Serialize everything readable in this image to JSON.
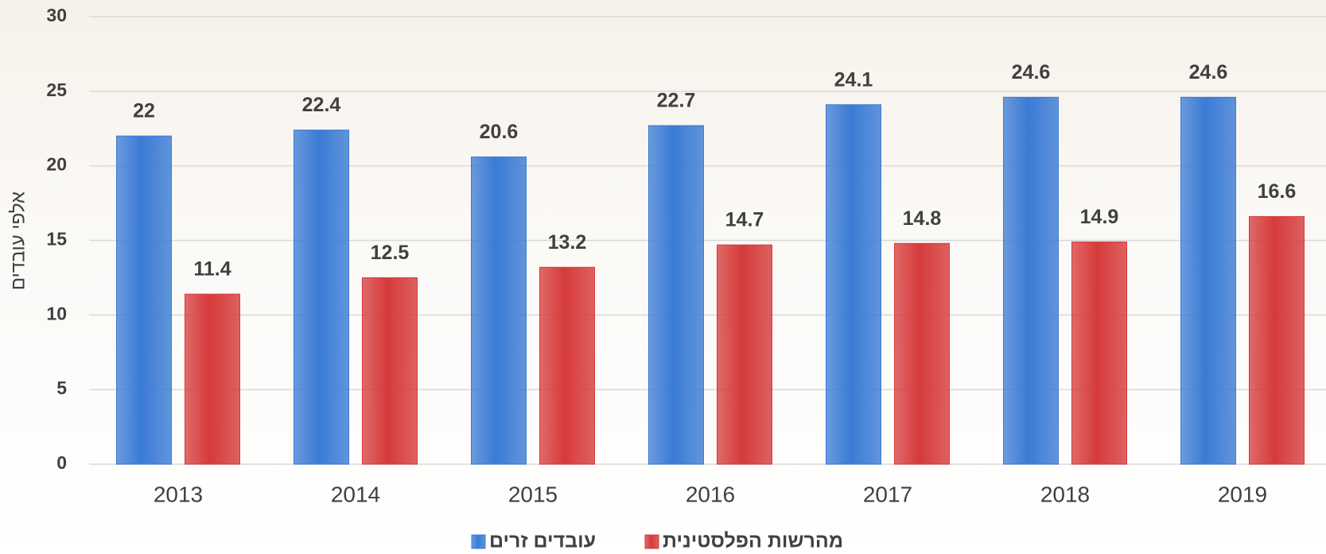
{
  "chart_data": {
    "type": "bar",
    "y_label": "אלפי עובדים",
    "categories": [
      "2013",
      "2014",
      "2015",
      "2016",
      "2017",
      "2018",
      "2019"
    ],
    "series": [
      {
        "name": "עובדים זרים",
        "color": "#3a7bd5",
        "values": [
          22,
          22.4,
          20.6,
          22.7,
          24.1,
          24.6,
          24.6
        ]
      },
      {
        "name": "מהרשות הפלסטינית",
        "color": "#d63a3a",
        "values": [
          11.4,
          12.5,
          13.2,
          14.7,
          14.8,
          14.9,
          16.6
        ]
      }
    ],
    "ylim": [
      0,
      30
    ],
    "yticks": [
      0,
      5,
      10,
      15,
      20,
      25,
      30
    ],
    "grid": true,
    "legend": "bottom"
  }
}
